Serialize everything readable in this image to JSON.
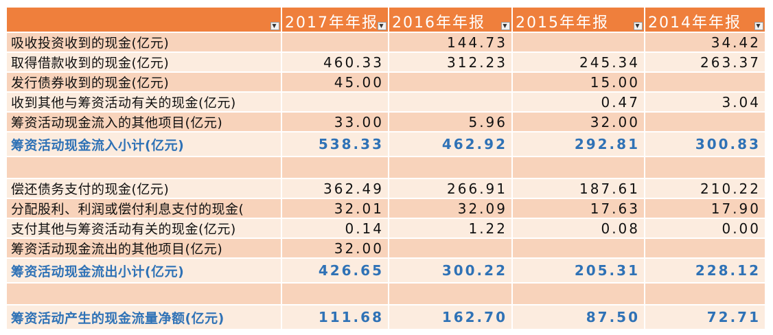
{
  "headers": [
    "2017年年报",
    "2016年年报",
    "2015年年报",
    "2014年年报"
  ],
  "rows": [
    {
      "label": "吸收投资收到的现金(亿元)",
      "values": [
        "",
        "144.73",
        "",
        "34.42"
      ],
      "style": "alt"
    },
    {
      "label": "取得借款收到的现金(亿元)",
      "values": [
        "460.33",
        "312.23",
        "245.34",
        "263.37"
      ],
      "style": "pale"
    },
    {
      "label": "发行债券收到的现金(亿元)",
      "values": [
        "45.00",
        "",
        "15.00",
        ""
      ],
      "style": "alt"
    },
    {
      "label": "收到其他与筹资活动有关的现金(亿元)",
      "values": [
        "",
        "",
        "0.47",
        "3.04"
      ],
      "style": "pale"
    },
    {
      "label": "筹资活动现金流入的其他项目(亿元)",
      "values": [
        "33.00",
        "5.96",
        "32.00",
        ""
      ],
      "style": "alt"
    },
    {
      "label": "筹资活动现金流入小计(亿元)",
      "values": [
        "538.33",
        "462.92",
        "292.81",
        "300.83"
      ],
      "style": "pale total"
    },
    {
      "label": "",
      "values": [
        "",
        "",
        "",
        ""
      ],
      "style": "alt"
    },
    {
      "label": "偿还债务支付的现金(亿元)",
      "values": [
        "362.49",
        "266.91",
        "187.61",
        "210.22"
      ],
      "style": "pale"
    },
    {
      "label": "分配股利、利润或偿付利息支付的现金(",
      "values": [
        "32.01",
        "32.09",
        "17.63",
        "17.90"
      ],
      "style": "alt"
    },
    {
      "label": "支付其他与筹资活动有关的现金(亿元)",
      "values": [
        "0.14",
        "1.22",
        "0.08",
        "0.00"
      ],
      "style": "pale"
    },
    {
      "label": "筹资活动现金流出的其他项目(亿元)",
      "values": [
        "32.00",
        "",
        "",
        ""
      ],
      "style": "alt"
    },
    {
      "label": "筹资活动现金流出小计(亿元)",
      "values": [
        "426.65",
        "300.22",
        "205.31",
        "228.12"
      ],
      "style": "pale total"
    },
    {
      "label": "",
      "values": [
        "",
        "",
        "",
        ""
      ],
      "style": "alt"
    },
    {
      "label": "筹资活动产生的现金流量净额(亿元)",
      "values": [
        "111.68",
        "162.70",
        "87.50",
        "72.71"
      ],
      "style": "pale total"
    }
  ],
  "colors": {
    "header": "#ef7f3c",
    "row_alt": "#f8d3bb",
    "row_pale": "#fcecdf",
    "total_text": "#2f72b6"
  },
  "icons": {
    "filter": "dropdown-arrow-icon"
  }
}
